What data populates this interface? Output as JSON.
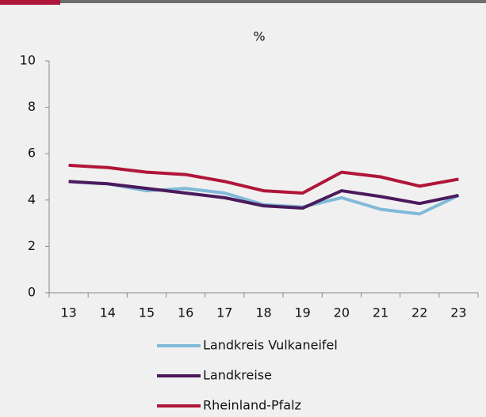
{
  "chart_data": {
    "type": "line",
    "title": "%",
    "categories": [
      "13",
      "14",
      "15",
      "16",
      "17",
      "18",
      "19",
      "20",
      "21",
      "22",
      "23"
    ],
    "series": [
      {
        "name": "Landkreis Vulkaneifel",
        "color": "#80bad8",
        "values": [
          4.8,
          4.7,
          4.4,
          4.5,
          4.3,
          3.8,
          3.7,
          4.1,
          3.6,
          3.4,
          4.2
        ]
      },
      {
        "name": "Landkreise",
        "color": "#4a1a5c",
        "values": [
          4.8,
          4.7,
          4.5,
          4.3,
          4.1,
          3.75,
          3.65,
          4.4,
          4.15,
          3.85,
          4.2
        ]
      },
      {
        "name": "Rheinland-Pfalz",
        "color": "#b01639",
        "values": [
          5.5,
          5.4,
          5.2,
          5.1,
          4.8,
          4.4,
          4.3,
          5.2,
          5.0,
          4.6,
          4.9
        ]
      }
    ],
    "ylim": [
      0,
      10
    ],
    "yticks": [
      0,
      2,
      4,
      6,
      8,
      10
    ],
    "grid": false
  }
}
